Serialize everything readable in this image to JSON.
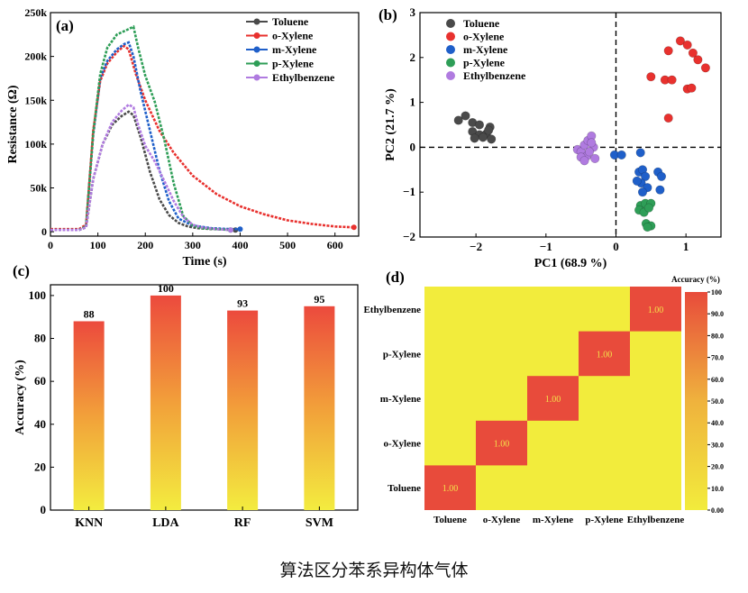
{
  "caption": "算法区分苯系异构体气体",
  "colors": {
    "Toluene": "#4a4a4a",
    "o-Xylene": "#e8312e",
    "m-Xylene": "#1f5fc9",
    "p-Xylene": "#2e9e57",
    "Ethylbenzene": "#b07be0",
    "heat_low": "#f2ec3c",
    "heat_high": "#e84b3b"
  },
  "chart_data": [
    {
      "panel": "(a)",
      "type": "line",
      "xlabel": "Time (s)",
      "ylabel": "Resistance (Ω)",
      "xlim": [
        0,
        650
      ],
      "ylim": [
        -5000,
        250000
      ],
      "x_ticks": [
        0,
        100,
        200,
        300,
        400,
        500,
        600
      ],
      "y_ticks": [
        0,
        50000,
        100000,
        150000,
        200000,
        250000
      ],
      "x_tick_labels": [
        "0",
        "100",
        "200",
        "300",
        "400",
        "500",
        "600"
      ],
      "y_tick_labels": [
        "0",
        "50k",
        "100k",
        "150k",
        "200k",
        "250k"
      ],
      "legend": "top-right",
      "series": [
        {
          "name": "Toluene",
          "x": [
            0,
            60,
            75,
            90,
            110,
            130,
            150,
            165,
            175,
            190,
            210,
            230,
            250,
            270,
            290,
            310,
            340,
            370,
            390
          ],
          "y": [
            2000,
            2000,
            5000,
            60000,
            100000,
            122000,
            132000,
            137000,
            133000,
            108000,
            68000,
            37000,
            19000,
            10000,
            6000,
            4000,
            3000,
            2500,
            2000
          ]
        },
        {
          "name": "o-Xylene",
          "x": [
            0,
            60,
            75,
            90,
            105,
            120,
            140,
            155,
            165,
            180,
            200,
            230,
            260,
            300,
            350,
            400,
            450,
            500,
            550,
            600,
            640
          ],
          "y": [
            3000,
            3000,
            8000,
            115000,
            172000,
            192000,
            205000,
            212000,
            208000,
            180000,
            150000,
            115000,
            90000,
            64000,
            43000,
            29000,
            20000,
            13000,
            9000,
            6000,
            5000
          ]
        },
        {
          "name": "m-Xylene",
          "x": [
            0,
            60,
            75,
            90,
            105,
            120,
            140,
            155,
            165,
            175,
            190,
            210,
            230,
            250,
            270,
            300,
            340,
            380,
            400
          ],
          "y": [
            2000,
            2000,
            6000,
            110000,
            175000,
            195000,
            208000,
            214000,
            216000,
            200000,
            160000,
            115000,
            70000,
            35000,
            15000,
            7000,
            4000,
            3000,
            3000
          ]
        },
        {
          "name": "p-Xylene",
          "x": [
            0,
            60,
            75,
            90,
            105,
            120,
            140,
            160,
            175,
            185,
            200,
            220,
            240,
            260,
            280,
            300,
            320,
            350,
            380
          ],
          "y": [
            2000,
            2000,
            6000,
            112000,
            180000,
            210000,
            225000,
            230000,
            234000,
            210000,
            178000,
            148000,
            105000,
            55000,
            18000,
            7000,
            4000,
            3000,
            2000
          ]
        },
        {
          "name": "Ethylbenzene",
          "x": [
            0,
            60,
            75,
            90,
            110,
            130,
            150,
            165,
            175,
            185,
            200,
            220,
            240,
            260,
            280,
            300,
            320,
            350,
            380
          ],
          "y": [
            2000,
            2000,
            5000,
            60000,
            100000,
            125000,
            138000,
            145000,
            142000,
            122000,
            98000,
            80000,
            58000,
            35000,
            17000,
            8000,
            5000,
            3000,
            2000
          ]
        }
      ]
    },
    {
      "panel": "(b)",
      "type": "scatter",
      "xlabel": "PC1 (68.9 %)",
      "ylabel": "PC2 (21.7 %)",
      "xlim": [
        -2.8,
        1.5
      ],
      "ylim": [
        -2,
        3
      ],
      "x_ticks": [
        -2,
        -1,
        0,
        1
      ],
      "y_ticks": [
        -2,
        -1,
        0,
        1,
        2,
        3
      ],
      "x_tick_labels": [
        "−2",
        "−1",
        "0",
        "1"
      ],
      "y_tick_labels": [
        "−2",
        "−1",
        "0",
        "1",
        "2",
        "3"
      ],
      "legend": "top-left",
      "series": [
        {
          "name": "Toluene",
          "points": [
            [
              -2.25,
              0.6
            ],
            [
              -2.15,
              0.7
            ],
            [
              -2.05,
              0.55
            ],
            [
              -1.95,
              0.5
            ],
            [
              -1.8,
              0.45
            ],
            [
              -2.05,
              0.35
            ],
            [
              -1.95,
              0.28
            ],
            [
              -1.85,
              0.3
            ],
            [
              -1.78,
              0.18
            ],
            [
              -2.02,
              0.2
            ],
            [
              -1.9,
              0.22
            ],
            [
              -1.82,
              0.38
            ]
          ]
        },
        {
          "name": "o-Xylene",
          "points": [
            [
              0.5,
              1.57
            ],
            [
              0.7,
              1.5
            ],
            [
              0.8,
              1.5
            ],
            [
              0.75,
              2.15
            ],
            [
              0.92,
              2.37
            ],
            [
              1.02,
              2.28
            ],
            [
              1.1,
              2.1
            ],
            [
              1.17,
              1.95
            ],
            [
              1.28,
              1.77
            ],
            [
              1.02,
              1.3
            ],
            [
              1.08,
              1.32
            ],
            [
              0.75,
              0.65
            ]
          ]
        },
        {
          "name": "m-Xylene",
          "points": [
            [
              -0.02,
              -0.17
            ],
            [
              0.08,
              -0.17
            ],
            [
              0.35,
              -0.12
            ],
            [
              0.33,
              -0.55
            ],
            [
              0.38,
              -0.5
            ],
            [
              0.42,
              -0.65
            ],
            [
              0.36,
              -0.8
            ],
            [
              0.3,
              -0.75
            ],
            [
              0.45,
              -0.9
            ],
            [
              0.6,
              -0.55
            ],
            [
              0.65,
              -0.65
            ],
            [
              0.38,
              -1.0
            ],
            [
              0.63,
              -0.95
            ]
          ]
        },
        {
          "name": "p-Xylene",
          "points": [
            [
              0.35,
              -1.3
            ],
            [
              0.42,
              -1.25
            ],
            [
              0.5,
              -1.25
            ],
            [
              0.33,
              -1.4
            ],
            [
              0.4,
              -1.45
            ],
            [
              0.47,
              -1.35
            ],
            [
              0.43,
              -1.7
            ],
            [
              0.5,
              -1.75
            ],
            [
              0.45,
              -1.78
            ]
          ]
        },
        {
          "name": "Ethylbenzene",
          "points": [
            [
              -0.55,
              -0.05
            ],
            [
              -0.5,
              -0.1
            ],
            [
              -0.45,
              0.05
            ],
            [
              -0.4,
              0.15
            ],
            [
              -0.35,
              0.25
            ],
            [
              -0.42,
              -0.2
            ],
            [
              -0.3,
              -0.25
            ],
            [
              -0.5,
              -0.22
            ],
            [
              -0.32,
              0.0
            ],
            [
              -0.38,
              -0.1
            ],
            [
              -0.45,
              -0.3
            ],
            [
              -0.35,
              0.1
            ]
          ]
        }
      ]
    },
    {
      "panel": "(c)",
      "type": "bar",
      "ylabel": "Accuracy (%)",
      "ylim": [
        0,
        105
      ],
      "y_ticks": [
        0,
        20,
        40,
        60,
        80,
        100
      ],
      "y_tick_labels": [
        "0",
        "20",
        "40",
        "60",
        "80",
        "100"
      ],
      "categories": [
        "KNN",
        "LDA",
        "RF",
        "SVM"
      ],
      "values": [
        88,
        100,
        93,
        95
      ],
      "value_labels": [
        "88",
        "100",
        "93",
        "95"
      ]
    },
    {
      "panel": "(d)",
      "type": "heatmap",
      "x_categories": [
        "Toluene",
        "o-Xylene",
        "m-Xylene",
        "p-Xylene",
        "Ethylbenzene"
      ],
      "y_categories": [
        "Toluene",
        "o-Xylene",
        "m-Xylene",
        "p-Xylene",
        "Ethylbenzene"
      ],
      "matrix": [
        [
          1.0,
          0,
          0,
          0,
          0
        ],
        [
          0,
          1.0,
          0,
          0,
          0
        ],
        [
          0,
          0,
          1.0,
          0,
          0
        ],
        [
          0,
          0,
          0,
          1.0,
          0
        ],
        [
          0,
          0,
          0,
          0,
          1.0
        ]
      ],
      "cell_labels": [
        "1.00",
        "1.00",
        "1.00",
        "1.00",
        "1.00"
      ],
      "colorbar_title": "Accuracy (%)",
      "colorbar_range": [
        0,
        100
      ],
      "colorbar_ticks": [
        0,
        10,
        20,
        30,
        40,
        50,
        60,
        70,
        80,
        90,
        100
      ],
      "colorbar_tick_labels": [
        "0.00",
        "10.0",
        "20.0",
        "30.0",
        "40.0",
        "50.0",
        "60.0",
        "70.0",
        "80.0",
        "90.0",
        "100"
      ]
    }
  ]
}
